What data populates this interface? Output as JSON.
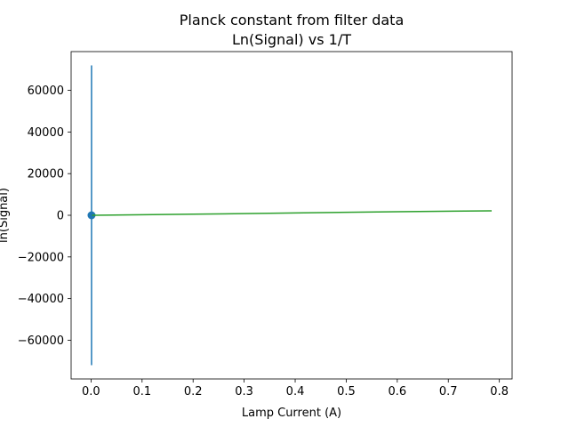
{
  "chart_data": {
    "type": "line",
    "title": "Planck constant from filter data",
    "subtitle": "Ln(Signal) vs 1/T",
    "xlabel": "Lamp Current (A)",
    "ylabel": "ln(Signal)",
    "xlim": [
      -0.039,
      0.825
    ],
    "ylim": [
      -78600,
      78600
    ],
    "xticks": [
      0.0,
      0.1,
      0.2,
      0.3,
      0.4,
      0.5,
      0.6,
      0.7,
      0.8
    ],
    "xtick_labels": [
      "0.0",
      "0.1",
      "0.2",
      "0.3",
      "0.4",
      "0.5",
      "0.6",
      "0.7",
      "0.8"
    ],
    "yticks": [
      -60000,
      -40000,
      -20000,
      0,
      20000,
      40000,
      60000
    ],
    "ytick_labels": [
      "−60000",
      "−40000",
      "−20000",
      "0",
      "20000",
      "40000",
      "60000"
    ],
    "grid": false,
    "series": [
      {
        "kind": "errorbar",
        "color": "#1f77b4",
        "points": [
          {
            "x": 0.001,
            "y": 0,
            "yerr": 72000
          }
        ]
      },
      {
        "kind": "line",
        "color": "#2ca02c",
        "x": [
          0.002,
          0.2,
          0.4,
          0.6,
          0.785
        ],
        "y": [
          20,
          520,
          1120,
          1720,
          2150
        ]
      }
    ]
  }
}
